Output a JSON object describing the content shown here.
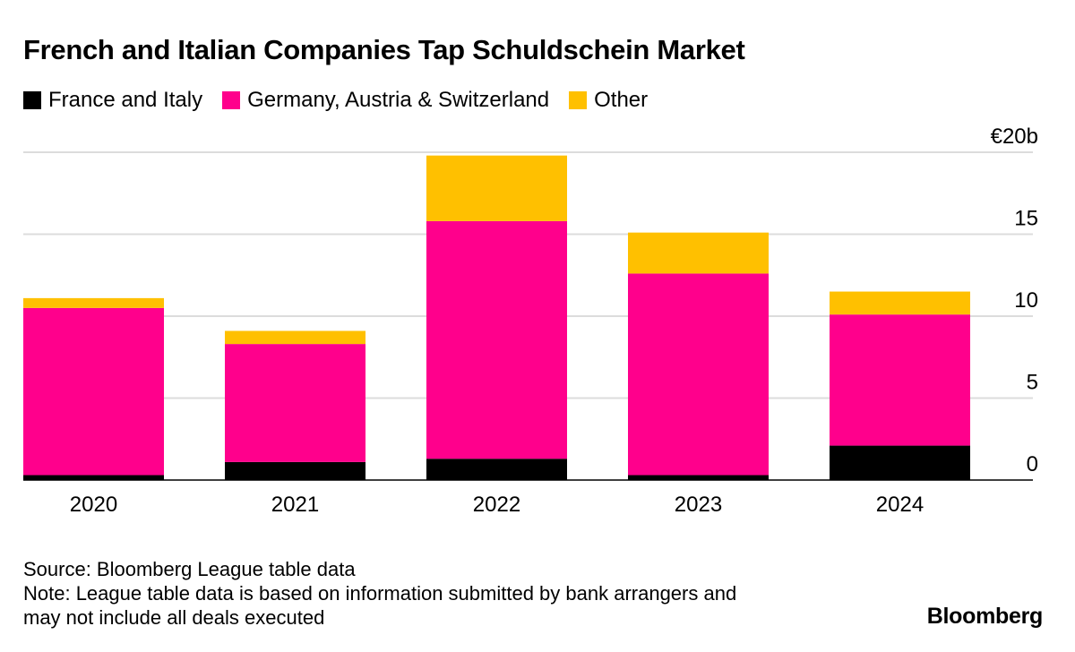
{
  "chart_data": {
    "type": "bar",
    "stacked": true,
    "title": "French and Italian Companies Tap Schuldschein Market",
    "categories": [
      "2020",
      "2021",
      "2022",
      "2023",
      "2024"
    ],
    "series": [
      {
        "name": "France and Italy",
        "color": "#000000",
        "values": [
          0.3,
          1.1,
          1.3,
          0.3,
          2.1
        ]
      },
      {
        "name": "Germany, Austria & Switzerland",
        "color": "#ff008c",
        "values": [
          10.2,
          7.2,
          14.5,
          12.3,
          8.0
        ]
      },
      {
        "name": "Other",
        "color": "#ffc000",
        "values": [
          0.6,
          0.8,
          4.0,
          2.5,
          1.4
        ]
      }
    ],
    "ylim": [
      0,
      20
    ],
    "yticks": [
      0,
      5,
      10,
      15,
      20
    ],
    "ytick_labels": [
      "0",
      "5",
      "10",
      "15",
      "€20b"
    ],
    "xlabel": "",
    "ylabel": "",
    "grid": true,
    "legend_position": "top-left"
  },
  "footer": {
    "source": "Source: Bloomberg League table data",
    "note_line1": "Note: League table data is based on information submitted by bank arrangers and",
    "note_line2": "may not include all deals executed"
  },
  "brand": "Bloomberg"
}
